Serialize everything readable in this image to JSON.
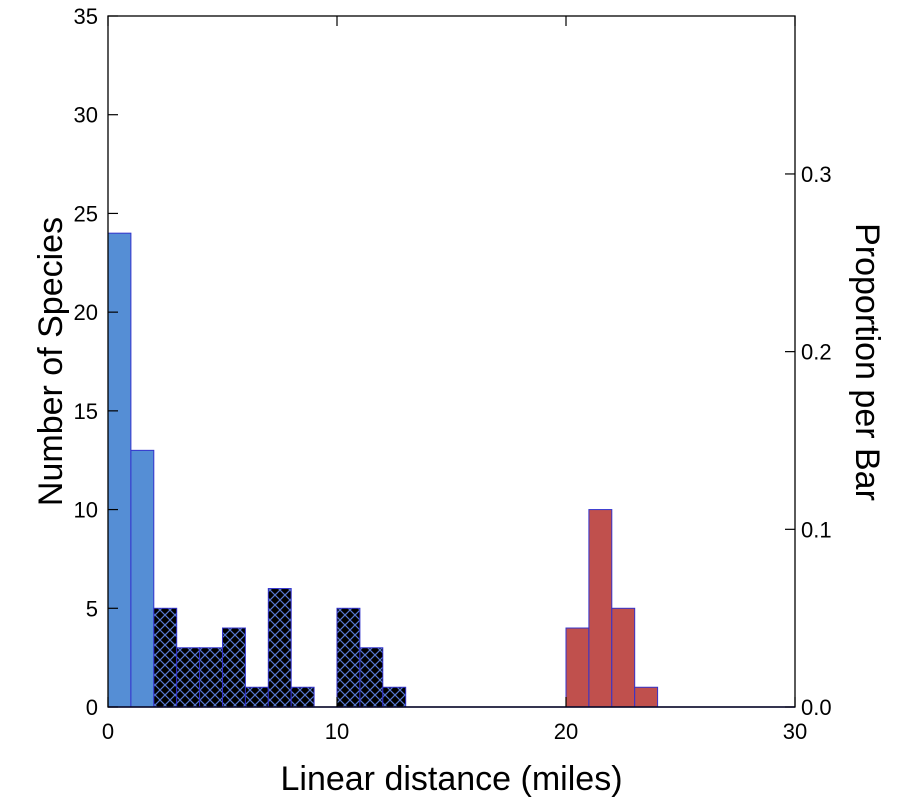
{
  "chart_data": {
    "type": "bar",
    "xlabel": "Linear distance (miles)",
    "ylabel": "Number of Species",
    "y2label": "Proportion per Bar",
    "xlim": [
      0,
      30
    ],
    "ylim": [
      0,
      35
    ],
    "y2lim": [
      0.0,
      0.3889
    ],
    "bin_width": 1,
    "x_ticks": [
      0,
      10,
      20,
      30
    ],
    "y_ticks": [
      0,
      5,
      10,
      15,
      20,
      25,
      30,
      35
    ],
    "y2_ticks": [
      "0.0",
      "0.1",
      "0.2",
      "0.3"
    ],
    "y2_tick_values": [
      0.0,
      0.1,
      0.2,
      0.3
    ],
    "series": [
      {
        "fill": "#558ed5",
        "pattern": "solid",
        "bins": [
          {
            "x0": 0,
            "value": 24
          },
          {
            "x0": 1,
            "value": 13
          }
        ]
      },
      {
        "fill": "#000000",
        "pattern": "crosshatch",
        "bins": [
          {
            "x0": 2,
            "value": 5
          },
          {
            "x0": 3,
            "value": 3
          },
          {
            "x0": 4,
            "value": 3
          },
          {
            "x0": 5,
            "value": 4
          },
          {
            "x0": 6,
            "value": 1
          },
          {
            "x0": 7,
            "value": 6
          },
          {
            "x0": 8,
            "value": 1
          },
          {
            "x0": 10,
            "value": 5
          },
          {
            "x0": 11,
            "value": 3
          },
          {
            "x0": 12,
            "value": 1
          }
        ]
      },
      {
        "fill": "#c0504d",
        "pattern": "solid",
        "bins": [
          {
            "x0": 20,
            "value": 4
          },
          {
            "x0": 21,
            "value": 10
          },
          {
            "x0": 22,
            "value": 5
          },
          {
            "x0": 23,
            "value": 1
          }
        ]
      }
    ],
    "edge_color": "#3333cc",
    "grid": false
  }
}
